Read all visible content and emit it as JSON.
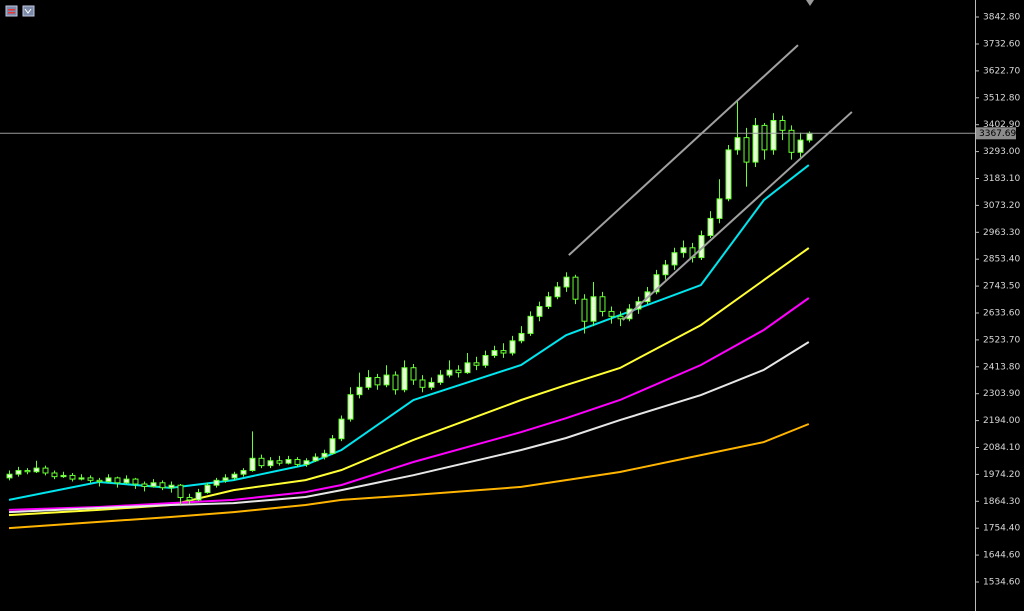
{
  "chart_data": {
    "type": "candlestick",
    "ylim": [
      1428.4,
      3912.3
    ],
    "xlim": [
      -1,
      107.5
    ],
    "yticks": [
      {
        "value": 1534.6,
        "label": "1534.60"
      },
      {
        "value": 1644.6,
        "label": "1644.60"
      },
      {
        "value": 1754.4,
        "label": "1754.40"
      },
      {
        "value": 1864.3,
        "label": "1864.30"
      },
      {
        "value": 1974.2,
        "label": "1974.20"
      },
      {
        "value": 2084.1,
        "label": "2084.10"
      },
      {
        "value": 2194,
        "label": "2194.00"
      },
      {
        "value": 2303.9,
        "label": "2303.90"
      },
      {
        "value": 2413.8,
        "label": "2413.80"
      },
      {
        "value": 2523.7,
        "label": "2523.70"
      },
      {
        "value": 2633.6,
        "label": "2633.60"
      },
      {
        "value": 2743.5,
        "label": "2743.50"
      },
      {
        "value": 2853.4,
        "label": "2853.40"
      },
      {
        "value": 2963.3,
        "label": "2963.30"
      },
      {
        "value": 3073.2,
        "label": "3073.20"
      },
      {
        "value": 3183.1,
        "label": "3183.10"
      },
      {
        "value": 3293,
        "label": "3293.00"
      },
      {
        "value": 3402.9,
        "label": "3402.90"
      },
      {
        "value": 3512.8,
        "label": "3512.80"
      },
      {
        "value": 3622.7,
        "label": "3622.70"
      },
      {
        "value": 3732.6,
        "label": "3732.60"
      },
      {
        "value": 3842.8,
        "label": "3842.80"
      }
    ],
    "last_price": 3367.69,
    "candle_color": "#66ff33",
    "bull_fill": "#e8ffd8",
    "bear_fill": "#000000",
    "ohlc": [
      [
        1960,
        1990,
        1950,
        1975
      ],
      [
        1975,
        2005,
        1965,
        1990
      ],
      [
        1990,
        2000,
        1975,
        1985
      ],
      [
        1985,
        2030,
        1980,
        2000
      ],
      [
        2000,
        2010,
        1970,
        1980
      ],
      [
        1980,
        1990,
        1955,
        1965
      ],
      [
        1965,
        1985,
        1960,
        1970
      ],
      [
        1970,
        1980,
        1945,
        1955
      ],
      [
        1955,
        1975,
        1950,
        1960
      ],
      [
        1960,
        1970,
        1940,
        1950
      ],
      [
        1950,
        1960,
        1925,
        1945
      ],
      [
        1945,
        1975,
        1940,
        1960
      ],
      [
        1960,
        1965,
        1920,
        1940
      ],
      [
        1940,
        1970,
        1935,
        1955
      ],
      [
        1955,
        1960,
        1915,
        1935
      ],
      [
        1935,
        1945,
        1905,
        1925
      ],
      [
        1925,
        1955,
        1920,
        1940
      ],
      [
        1940,
        1950,
        1910,
        1920
      ],
      [
        1920,
        1945,
        1900,
        1930
      ],
      [
        1930,
        1935,
        1850,
        1880
      ],
      [
        1880,
        1895,
        1855,
        1870
      ],
      [
        1870,
        1915,
        1865,
        1900
      ],
      [
        1900,
        1940,
        1895,
        1930
      ],
      [
        1930,
        1960,
        1920,
        1950
      ],
      [
        1950,
        1975,
        1940,
        1960
      ],
      [
        1960,
        1985,
        1950,
        1975
      ],
      [
        1975,
        2000,
        1965,
        1990
      ],
      [
        1990,
        2150,
        1985,
        2040
      ],
      [
        2040,
        2055,
        2000,
        2010
      ],
      [
        2010,
        2045,
        2000,
        2030
      ],
      [
        2030,
        2050,
        2010,
        2020
      ],
      [
        2020,
        2050,
        2015,
        2035
      ],
      [
        2035,
        2045,
        2005,
        2015
      ],
      [
        2015,
        2040,
        2005,
        2030
      ],
      [
        2030,
        2060,
        2025,
        2045
      ],
      [
        2045,
        2075,
        2035,
        2060
      ],
      [
        2060,
        2135,
        2055,
        2120
      ],
      [
        2120,
        2215,
        2110,
        2200
      ],
      [
        2200,
        2330,
        2190,
        2300
      ],
      [
        2300,
        2390,
        2285,
        2330
      ],
      [
        2330,
        2400,
        2320,
        2370
      ],
      [
        2370,
        2385,
        2320,
        2340
      ],
      [
        2340,
        2420,
        2330,
        2380
      ],
      [
        2380,
        2395,
        2300,
        2320
      ],
      [
        2320,
        2440,
        2310,
        2410
      ],
      [
        2410,
        2425,
        2340,
        2360
      ],
      [
        2360,
        2380,
        2310,
        2330
      ],
      [
        2330,
        2370,
        2320,
        2350
      ],
      [
        2350,
        2400,
        2340,
        2380
      ],
      [
        2380,
        2440,
        2370,
        2400
      ],
      [
        2400,
        2420,
        2370,
        2390
      ],
      [
        2390,
        2470,
        2385,
        2430
      ],
      [
        2430,
        2455,
        2400,
        2420
      ],
      [
        2420,
        2480,
        2410,
        2460
      ],
      [
        2460,
        2500,
        2450,
        2480
      ],
      [
        2480,
        2510,
        2450,
        2470
      ],
      [
        2470,
        2540,
        2460,
        2520
      ],
      [
        2520,
        2580,
        2510,
        2550
      ],
      [
        2550,
        2640,
        2540,
        2620
      ],
      [
        2620,
        2680,
        2600,
        2660
      ],
      [
        2660,
        2720,
        2650,
        2700
      ],
      [
        2700,
        2760,
        2690,
        2740
      ],
      [
        2740,
        2800,
        2720,
        2780
      ],
      [
        2780,
        2790,
        2670,
        2690
      ],
      [
        2690,
        2710,
        2550,
        2600
      ],
      [
        2600,
        2760,
        2580,
        2700
      ],
      [
        2700,
        2720,
        2620,
        2640
      ],
      [
        2640,
        2660,
        2590,
        2620
      ],
      [
        2620,
        2640,
        2580,
        2610
      ],
      [
        2610,
        2670,
        2600,
        2650
      ],
      [
        2650,
        2700,
        2630,
        2680
      ],
      [
        2680,
        2740,
        2670,
        2720
      ],
      [
        2720,
        2810,
        2710,
        2790
      ],
      [
        2790,
        2850,
        2770,
        2830
      ],
      [
        2830,
        2900,
        2810,
        2880
      ],
      [
        2880,
        2930,
        2860,
        2900
      ],
      [
        2900,
        2920,
        2840,
        2860
      ],
      [
        2860,
        2970,
        2850,
        2950
      ],
      [
        2950,
        3050,
        2940,
        3020
      ],
      [
        3020,
        3180,
        3000,
        3100
      ],
      [
        3100,
        3320,
        3090,
        3300
      ],
      [
        3300,
        3500,
        3280,
        3350
      ],
      [
        3350,
        3390,
        3150,
        3250
      ],
      [
        3250,
        3430,
        3230,
        3400
      ],
      [
        3400,
        3410,
        3260,
        3300
      ],
      [
        3300,
        3450,
        3280,
        3420
      ],
      [
        3420,
        3440,
        3340,
        3380
      ],
      [
        3380,
        3400,
        3260,
        3290
      ],
      [
        3290,
        3370,
        3270,
        3340
      ],
      [
        3340,
        3375,
        3330,
        3367.69
      ]
    ],
    "x": [
      0,
      10,
      18,
      25,
      33,
      37,
      45,
      57,
      62,
      68,
      77,
      84,
      89
    ],
    "series": [
      {
        "color": "#00e5ee",
        "values": [
          1870,
          1943,
          1919,
          1951,
          2013,
          2074,
          2278,
          2421,
          2543,
          2625,
          2748,
          3095,
          3238
        ]
      },
      {
        "color": "#ffff33",
        "values": [
          1808,
          1829,
          1849,
          1910,
          1951,
          1992,
          2115,
          2278,
          2339,
          2409,
          2584,
          2768,
          2899
        ]
      },
      {
        "color": "#ff00ff",
        "values": [
          1829,
          1841,
          1857,
          1870,
          1902,
          1931,
          2025,
          2147,
          2204,
          2278,
          2421,
          2564,
          2695
        ]
      },
      {
        "color": "#e6e6e6",
        "values": [
          1820,
          1837,
          1849,
          1857,
          1882,
          1910,
          1971,
          2074,
          2123,
          2196,
          2298,
          2401,
          2515
        ]
      },
      {
        "color": "#ffb400",
        "values": [
          1755,
          1780,
          1800,
          1820,
          1849,
          1870,
          1890,
          1923,
          1951,
          1984,
          2053,
          2106,
          2180
        ]
      }
    ],
    "channel": [
      {
        "x": [
          62.3,
          87.8
        ],
        "y": [
          2870,
          3728
        ]
      },
      {
        "x": [
          68.3,
          93.8
        ],
        "y": [
          2605,
          3455
        ]
      }
    ],
    "channel_color": "#a0a0a0"
  }
}
